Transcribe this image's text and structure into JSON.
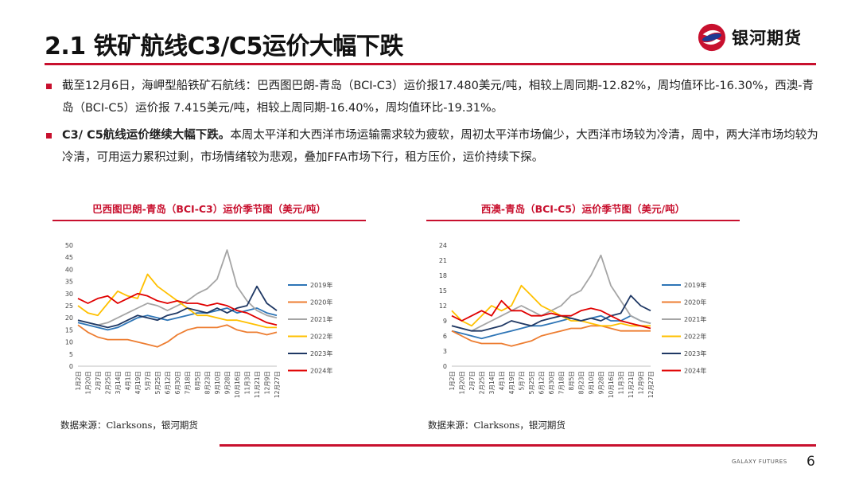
{
  "header": {
    "title": "2.1 铁矿航线C3/C5运价大幅下跌",
    "brand": "银河期货",
    "accent": "#c8102e"
  },
  "bullets": [
    {
      "bold": "",
      "text": "截至12月6日，海岬型船铁矿石航线：巴西图巴朗-青岛（BCI-C3）运价报17.480美元/吨，相较上周同期-12.82%，周均值环比-16.30%，西澳-青岛（BCI-C5）运价报 7.415美元/吨，相较上周同期-16.40%，周均值环比-19.31%。"
    },
    {
      "bold": "C3/ C5航线运价继续大幅下跌。",
      "text": "本周太平洋和大西洋市场运输需求较为疲软，周初太平洋市场偏少，大西洋市场较为冷清，周中，两大洋市场均较为冷清，可用运力累积过剩，市场情绪较为悲观，叠加FFA市场下行，租方压价，运价持续下探。"
    }
  ],
  "chart_data": [
    {
      "type": "line",
      "title": "巴西图巴朗-青岛（BCI-C3）运价季节图（美元/吨）",
      "ylim": [
        0,
        50
      ],
      "yticks": [
        0,
        5,
        10,
        15,
        20,
        25,
        30,
        35,
        40,
        45,
        50
      ],
      "categories": [
        "1月2日",
        "1月20日",
        "2月7日",
        "2月25日",
        "3月14日",
        "4月1日",
        "4月19日",
        "5月7日",
        "5月25日",
        "6月12日",
        "6月30日",
        "7月18日",
        "8月5日",
        "8月23日",
        "9月10日",
        "9月28日",
        "10月16日",
        "11月3日",
        "11月21日",
        "12月9日",
        "12月27日"
      ],
      "series": [
        {
          "name": "2019年",
          "color": "#2e75b6",
          "values": [
            18,
            17,
            16,
            15,
            16,
            18,
            20,
            21,
            20,
            19,
            20,
            21,
            22,
            22,
            23,
            24,
            22,
            23,
            24,
            22,
            21
          ]
        },
        {
          "name": "2020年",
          "color": "#ed7d31",
          "values": [
            17,
            14,
            12,
            11,
            11,
            11,
            10,
            9,
            8,
            10,
            13,
            15,
            16,
            16,
            16,
            17,
            15,
            14,
            14,
            13,
            14
          ]
        },
        {
          "name": "2021年",
          "color": "#a5a5a5",
          "values": [
            19,
            18,
            17,
            18,
            20,
            22,
            24,
            26,
            25,
            23,
            25,
            27,
            30,
            32,
            36,
            48,
            33,
            27,
            23,
            21,
            20
          ]
        },
        {
          "name": "2022年",
          "color": "#ffc000",
          "values": [
            25,
            22,
            21,
            26,
            31,
            29,
            28,
            38,
            33,
            30,
            27,
            24,
            21,
            21,
            20,
            19,
            19,
            18,
            17,
            16,
            16
          ]
        },
        {
          "name": "2023年",
          "color": "#1f3864",
          "values": [
            19,
            18,
            17,
            16,
            17,
            19,
            21,
            20,
            19,
            21,
            22,
            24,
            23,
            22,
            24,
            22,
            24,
            25,
            33,
            26,
            23
          ]
        },
        {
          "name": "2024年",
          "color": "#e00000",
          "values": [
            28,
            26,
            28,
            29,
            26,
            28,
            30,
            29,
            27,
            26,
            27,
            26,
            26,
            25,
            26,
            25,
            23,
            22,
            20,
            18,
            17
          ]
        }
      ]
    },
    {
      "type": "line",
      "title": "西澳-青岛（BCI-C5）运价季节图（美元/吨）",
      "ylim": [
        0,
        24
      ],
      "yticks": [
        0,
        3,
        6,
        9,
        12,
        15,
        18,
        21,
        24
      ],
      "categories": [
        "1月2日",
        "1月20日",
        "2月7日",
        "2月25日",
        "3月14日",
        "4月1日",
        "4月19日",
        "5月7日",
        "5月25日",
        "6月12日",
        "6月30日",
        "7月18日",
        "8月5日",
        "8月23日",
        "9月10日",
        "9月28日",
        "10月16日",
        "11月3日",
        "11月21日",
        "12月9日",
        "12月27日"
      ],
      "series": [
        {
          "name": "2019年",
          "color": "#2e75b6",
          "values": [
            7,
            6.5,
            6,
            5.5,
            6,
            6.5,
            7,
            7.5,
            8,
            8,
            8.5,
            9,
            9.5,
            9,
            9.5,
            10,
            9,
            9,
            10,
            9,
            8.5
          ]
        },
        {
          "name": "2020年",
          "color": "#ed7d31",
          "values": [
            7,
            6,
            5,
            4.5,
            4.5,
            4.5,
            4,
            4.5,
            5,
            6,
            6.5,
            7,
            7.5,
            7.5,
            8,
            8,
            7.5,
            7,
            7,
            7,
            7
          ]
        },
        {
          "name": "2021年",
          "color": "#a5a5a5",
          "values": [
            8,
            7.5,
            7,
            8,
            9,
            10,
            11,
            12,
            11,
            10,
            11,
            12,
            14,
            15,
            18,
            22,
            16,
            13,
            10,
            9,
            8.5
          ]
        },
        {
          "name": "2022年",
          "color": "#ffc000",
          "values": [
            11,
            9,
            8,
            10,
            12,
            11,
            12,
            16,
            14,
            12,
            11,
            10,
            9,
            9,
            8.5,
            8,
            8,
            8.5,
            8,
            8,
            8
          ]
        },
        {
          "name": "2023年",
          "color": "#1f3864",
          "values": [
            8,
            7.5,
            7,
            7,
            7.5,
            8,
            9,
            8.5,
            8,
            9,
            9.5,
            10,
            9.5,
            9,
            9.5,
            9,
            10,
            10.5,
            14,
            12,
            11
          ]
        },
        {
          "name": "2024年",
          "color": "#e00000",
          "values": [
            10,
            9,
            10,
            11,
            10,
            13,
            11,
            11,
            10,
            10,
            10.5,
            10,
            10,
            11,
            11.5,
            11,
            10,
            9,
            8.5,
            8,
            7.5
          ]
        }
      ]
    }
  ],
  "sources": [
    "数据来源：Clarksons，银河期货",
    "数据来源：Clarksons，银河期货"
  ],
  "footer": {
    "brand": "GALAXY FUTURES",
    "page": "6"
  }
}
